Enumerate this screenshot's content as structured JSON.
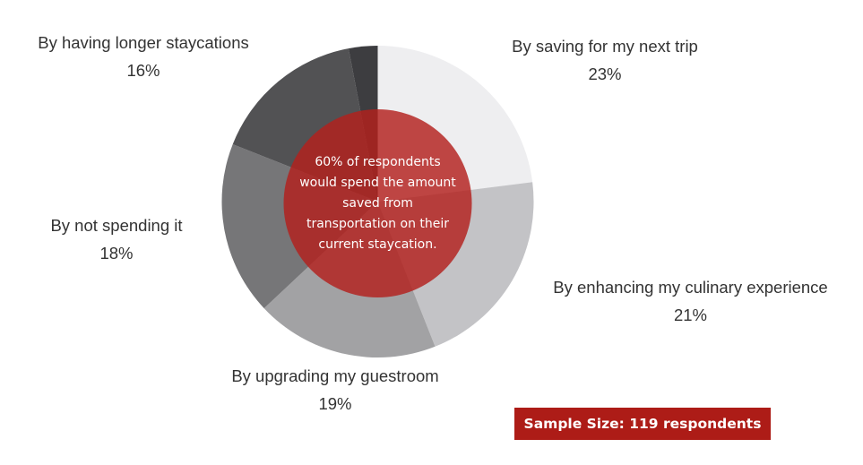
{
  "chart_data": {
    "type": "pie",
    "title": "",
    "categories": [
      "By saving for my next trip",
      "By enhancing my culinary experience",
      "By upgrading my guestroom",
      "By not spending it",
      "By having longer staycations",
      "Other (unlabeled)"
    ],
    "values": [
      23,
      21,
      19,
      18,
      16,
      3
    ],
    "colors": [
      "#eeeef0",
      "#c3c3c6",
      "#a2a2a4",
      "#767678",
      "#525254",
      "#3d3d40"
    ],
    "value_suffix": "%",
    "start_angle": "12 o'clock, clockwise",
    "overlay": {
      "shape": "circle",
      "color": "#b3201c",
      "opacity": 0.82,
      "text": [
        "60% of respondents",
        "would spend the amount",
        "saved from",
        "transportation on their",
        "current staycation."
      ]
    }
  },
  "labels": [
    {
      "name": "By saving for my next trip",
      "pct": "23%"
    },
    {
      "name": "By enhancing my culinary experience",
      "pct": "21%"
    },
    {
      "name": "By upgrading my guestroom",
      "pct": "19%"
    },
    {
      "name": "By not spending it",
      "pct": "18%"
    },
    {
      "name": "By having longer staycations",
      "pct": "16%"
    }
  ],
  "sample_size": "Sample Size: 119 respondents"
}
